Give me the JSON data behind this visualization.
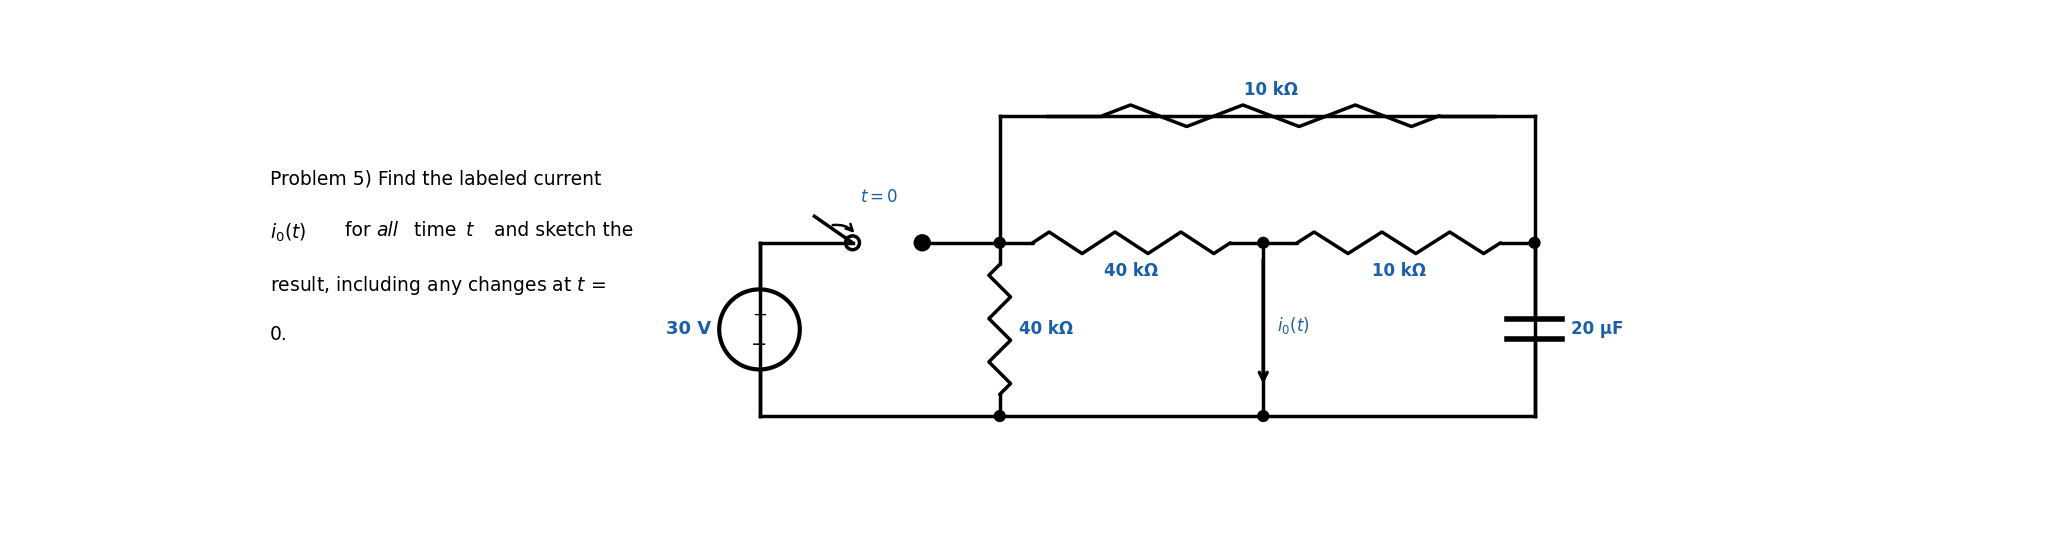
{
  "bg_color": "#ffffff",
  "text_color": "#000000",
  "label_color": "#1a5fa8",
  "line_color": "#000000",
  "line_width": 2.5,
  "fig_width": 20.46,
  "fig_height": 5.41,
  "problem_line1": "Problem 5) Find the labeled current",
  "problem_line2_a": "$i_0(t)$",
  "problem_line2_b": " for ",
  "problem_line2_c": "all",
  "problem_line2_d": " time ",
  "problem_line2_e": "$t$",
  "problem_line2_f": " and sketch the",
  "problem_line3": "result, including any changes at $t$ =",
  "problem_line4": "0.",
  "label_30V": "30 V",
  "label_40k_shunt": "40 kΩ",
  "label_40k_series": "40 kΩ",
  "label_10k_top": "10 kΩ",
  "label_10k_series": "10 kΩ",
  "label_20uF": "20 μF",
  "label_io": "$i_0(t)$",
  "label_t0": "$t = 0$",
  "label_plus": "+",
  "label_minus": "−"
}
